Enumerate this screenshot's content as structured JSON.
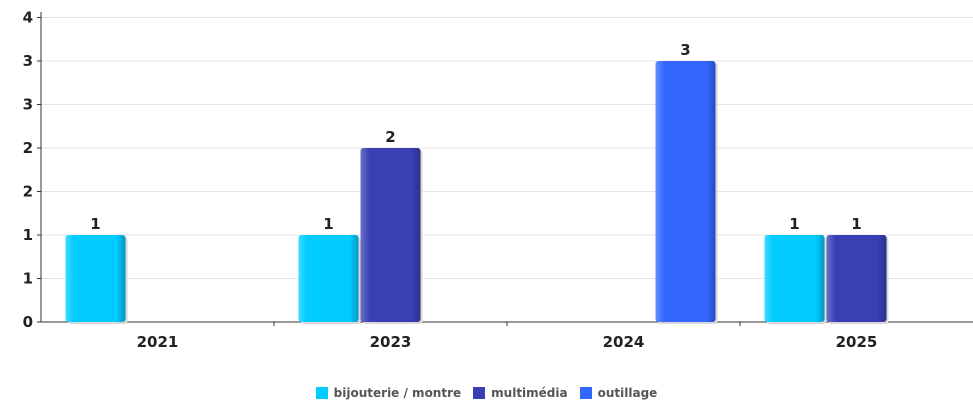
{
  "chart_data": {
    "type": "bar",
    "categories": [
      "2021",
      "2023",
      "2024",
      "2025"
    ],
    "y_tick_labels": [
      "0",
      "1",
      "1",
      "2",
      "2",
      "3",
      "3",
      "4"
    ],
    "ylim": [
      0,
      3.5
    ],
    "grid": true,
    "legend_position": "bottom",
    "series": [
      {
        "name": "bijouterie / montre",
        "color": "#00ccff",
        "values": [
          1,
          1,
          null,
          1
        ]
      },
      {
        "name": "multimédia",
        "color": "#3a40b4",
        "values": [
          null,
          2,
          null,
          1
        ]
      },
      {
        "name": "outillage",
        "color": "#3366ff",
        "values": [
          null,
          null,
          3,
          null
        ]
      }
    ]
  }
}
